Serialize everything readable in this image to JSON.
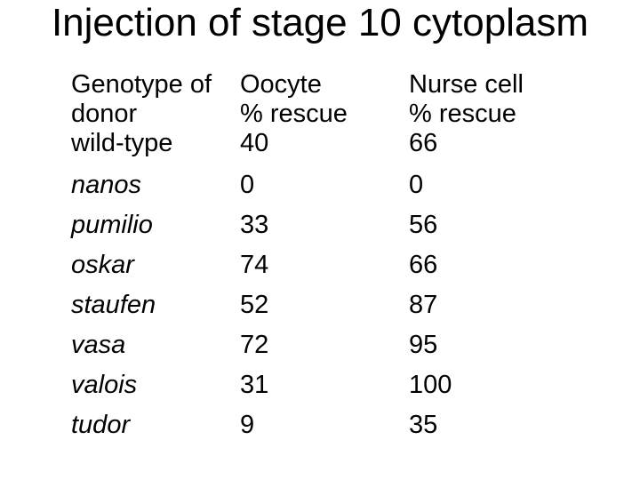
{
  "slide": {
    "title": "Injection of stage 10 cytoplasm"
  },
  "table": {
    "headers": {
      "genotype": {
        "line1": "Genotype of",
        "line2": "donor"
      },
      "oocyte": {
        "line1": "Oocyte",
        "line2": "% rescue"
      },
      "nurse": {
        "line1": "Nurse cell",
        "line2": "% rescue"
      }
    },
    "rows": [
      {
        "genotype": "wild-type",
        "oocyte": "40",
        "nurse": "66"
      },
      {
        "genotype": "nanos",
        "oocyte": "0",
        "nurse": "0"
      },
      {
        "genotype": "pumilio",
        "oocyte": "33",
        "nurse": "56"
      },
      {
        "genotype": "oskar",
        "oocyte": "74",
        "nurse": "66"
      },
      {
        "genotype": "staufen",
        "oocyte": "52",
        "nurse": "87"
      },
      {
        "genotype": "vasa",
        "oocyte": "72",
        "nurse": "95"
      },
      {
        "genotype": "valois",
        "oocyte": "31",
        "nurse": "100"
      },
      {
        "genotype": "tudor",
        "oocyte": "9",
        "nurse": "35"
      }
    ]
  },
  "chart_data": {
    "type": "table",
    "title": "Injection of stage 10 cytoplasm",
    "columns": [
      "Genotype of donor",
      "Oocyte % rescue",
      "Nurse cell % rescue"
    ],
    "rows": [
      [
        "wild-type",
        40,
        66
      ],
      [
        "nanos",
        0,
        0
      ],
      [
        "pumilio",
        33,
        56
      ],
      [
        "oskar",
        74,
        66
      ],
      [
        "staufen",
        52,
        87
      ],
      [
        "vasa",
        72,
        95
      ],
      [
        "valois",
        31,
        100
      ],
      [
        "tudor",
        9,
        35
      ]
    ]
  },
  "colors": {
    "background": "#ffffff",
    "text": "#000000"
  }
}
